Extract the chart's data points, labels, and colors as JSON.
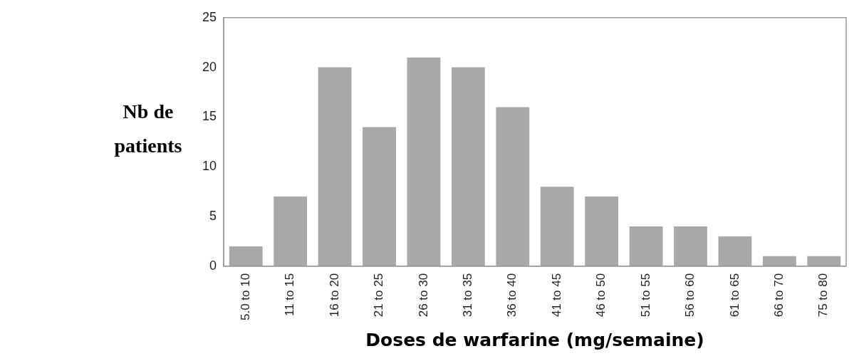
{
  "chart_data": {
    "type": "bar",
    "xlabel": "Doses de warfarine (mg/semaine)",
    "ylabel": "Nb de patients",
    "categories": [
      "5.0 to 10",
      "11 to 15",
      "16 to 20",
      "21 to 25",
      "26 to 30",
      "31 to 35",
      "36 to 40",
      "41 to 45",
      "46 to 50",
      "51 to 55",
      "56 to 60",
      "61 to 65",
      "66 to 70",
      "75 to 80"
    ],
    "values": [
      2,
      7,
      20,
      14,
      21,
      20,
      16,
      8,
      7,
      4,
      4,
      3,
      1,
      1
    ],
    "color": "#a8a8a8",
    "ylim": [
      0,
      25
    ],
    "yticks": [
      0,
      5,
      10,
      15,
      20,
      25
    ],
    "grid": false,
    "legend": false
  }
}
